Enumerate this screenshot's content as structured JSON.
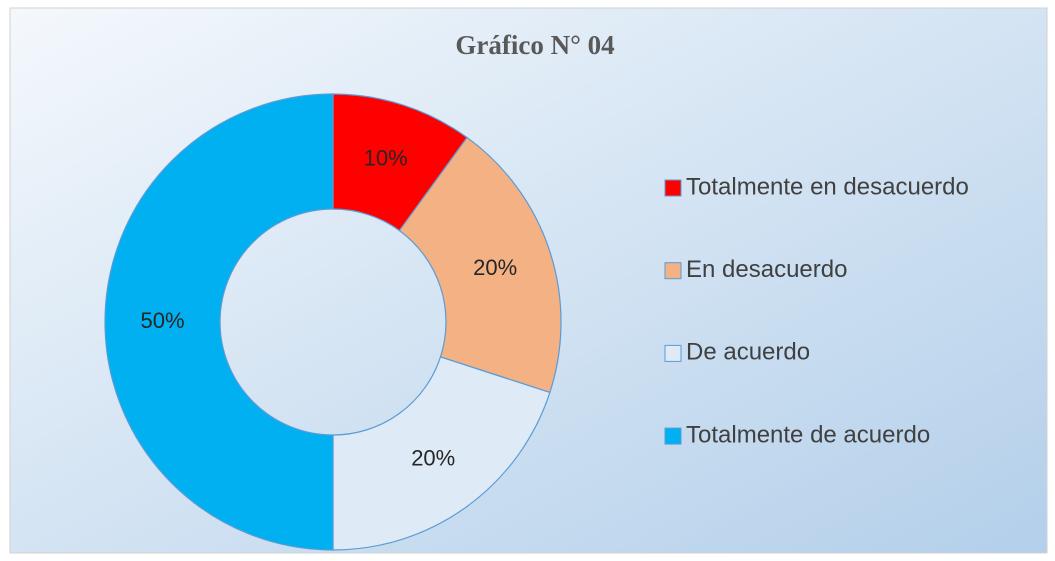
{
  "chart_data": {
    "type": "donut",
    "title": "Gráfico N° 04",
    "categories": [
      "Totalmente en desacuerdo",
      "En desacuerdo",
      "De acuerdo",
      "Totalmente de acuerdo"
    ],
    "values": [
      10,
      20,
      20,
      50
    ],
    "value_labels": [
      "10%",
      "20%",
      "20%",
      "50%"
    ],
    "colors": [
      "#ff0000",
      "#f4b183",
      "#deebf7",
      "#00b0f0"
    ],
    "legend": "right"
  }
}
